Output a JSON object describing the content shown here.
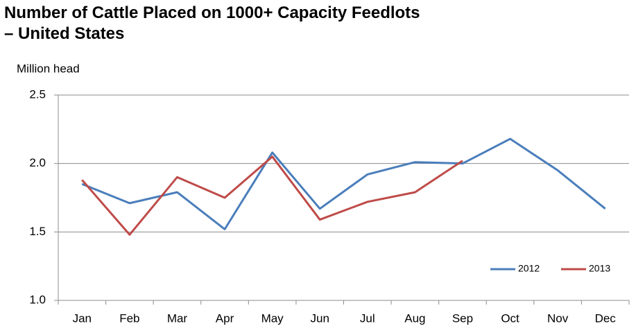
{
  "chart_data": {
    "type": "line",
    "title": "Number of Cattle Placed on 1000+ Capacity Feedlots – United States",
    "y_label": "Million head",
    "categories": [
      "Jan",
      "Feb",
      "Mar",
      "Apr",
      "May",
      "Jun",
      "Jul",
      "Aug",
      "Sep",
      "Oct",
      "Nov",
      "Dec"
    ],
    "series": [
      {
        "name": "2012",
        "color": "#4a7ebb",
        "values": [
          1.85,
          1.71,
          1.79,
          1.52,
          2.08,
          1.67,
          1.92,
          2.01,
          2.0,
          2.18,
          1.95,
          1.67
        ]
      },
      {
        "name": "2013",
        "color": "#be4b48",
        "values": [
          1.88,
          1.48,
          1.9,
          1.75,
          2.05,
          1.59,
          1.72,
          1.79,
          2.02,
          null,
          null,
          null
        ]
      }
    ],
    "ylim": [
      1.0,
      2.5
    ],
    "yticks": [
      {
        "value": 1.0,
        "label": "1.0"
      },
      1.5,
      {
        "value": 2.0,
        "label": "2.0"
      },
      2.5
    ],
    "grid": true,
    "legend": "bottom-right"
  }
}
